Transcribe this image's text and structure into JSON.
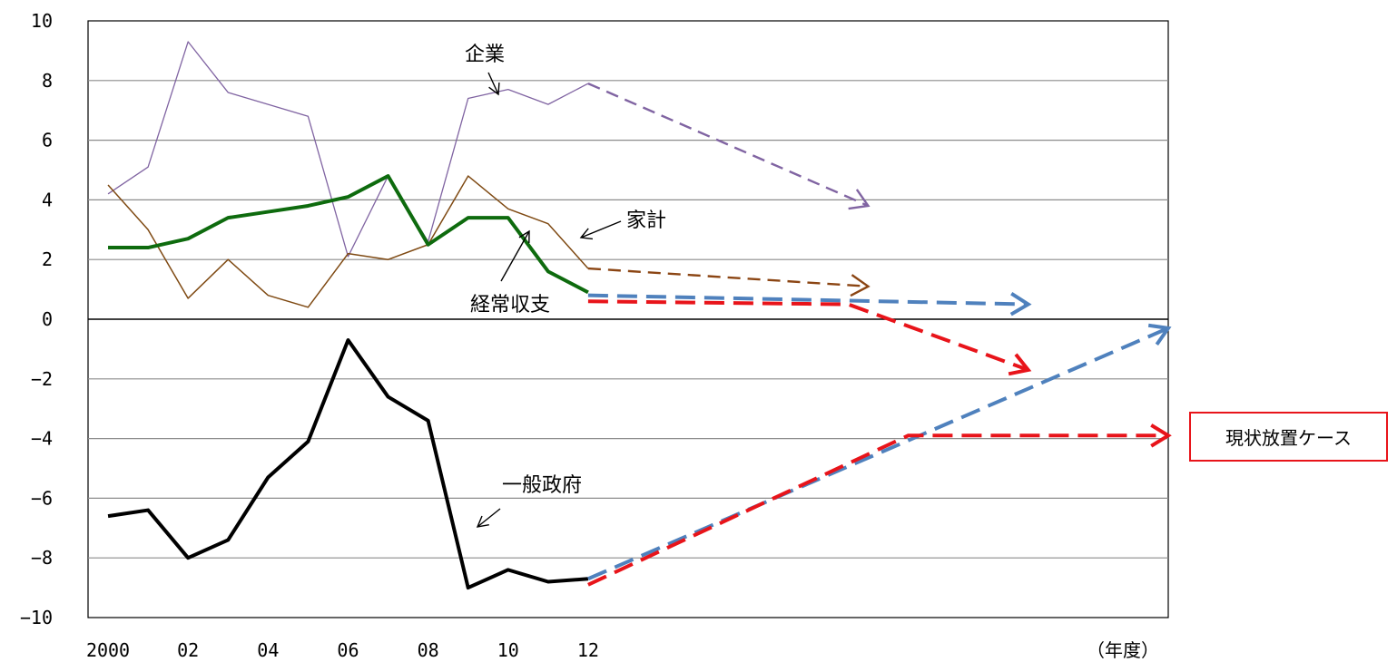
{
  "chart_data": {
    "type": "line",
    "x_unit": "（年度）",
    "ylim": [
      -10,
      10
    ],
    "y_ticks": [
      "10",
      "8",
      "6",
      "4",
      "2",
      "0",
      "-2",
      "-4",
      "-6",
      "-8",
      "-10"
    ],
    "x_tick_labels": [
      "2000",
      "02",
      "04",
      "06",
      "08",
      "10",
      "12"
    ],
    "x_years": [
      2000,
      2001,
      2002,
      2003,
      2004,
      2005,
      2006,
      2007,
      2008,
      2009,
      2010,
      2011,
      2012
    ],
    "series": [
      {
        "name": "企業",
        "color": "#8064a2",
        "values": [
          4.2,
          5.1,
          9.3,
          7.6,
          7.2,
          6.8,
          2.1,
          4.8,
          2.6,
          7.4,
          7.7,
          7.2,
          7.9
        ]
      },
      {
        "name": "家計",
        "color": "#7f4a13",
        "values": [
          4.5,
          3.0,
          0.7,
          2.0,
          0.8,
          0.4,
          2.2,
          2.0,
          2.5,
          4.8,
          3.7,
          3.2,
          1.7
        ]
      },
      {
        "name": "経常収支",
        "color": "#0e6b0e",
        "values": [
          2.4,
          2.4,
          2.7,
          3.4,
          3.6,
          3.8,
          4.1,
          4.8,
          2.5,
          3.4,
          3.4,
          1.6,
          0.9
        ]
      },
      {
        "name": "一般政府",
        "color": "#000000",
        "values": [
          -6.6,
          -6.4,
          -8.0,
          -7.4,
          -5.3,
          -4.1,
          -0.7,
          -2.6,
          -3.4,
          -9.0,
          -8.4,
          -8.8,
          -8.7
        ]
      }
    ],
    "projections": [
      {
        "series": "企業",
        "color": "#8064a2",
        "points": [
          [
            2012,
            7.9
          ],
          [
            2019,
            3.8
          ]
        ]
      },
      {
        "series": "家計",
        "color": "#8b4513",
        "points": [
          [
            2012,
            1.7
          ],
          [
            2019,
            1.1
          ]
        ]
      },
      {
        "series": "経常収支",
        "color": "#4f81bd",
        "points": [
          [
            2012,
            0.8
          ],
          [
            2023,
            0.5
          ]
        ]
      },
      {
        "series": "経常収支（現状放置ケース）",
        "color": "#e8141a",
        "points": [
          [
            2012,
            0.6
          ],
          [
            2018.5,
            0.5
          ],
          [
            2023,
            -1.7
          ]
        ]
      },
      {
        "series": "一般政府",
        "color": "#4f81bd",
        "points": [
          [
            2012,
            -8.7
          ],
          [
            2026.5,
            -0.3
          ]
        ]
      },
      {
        "series": "一般政府（現状放置ケース）",
        "color": "#e8141a",
        "points": [
          [
            2012,
            -8.9
          ],
          [
            2020,
            -3.9
          ],
          [
            2026.5,
            -3.9
          ]
        ]
      }
    ],
    "annotations": [
      {
        "text": "企業"
      },
      {
        "text": "家計"
      },
      {
        "text": "経常収支"
      },
      {
        "text": "一般政府"
      }
    ],
    "case_label": "現状放置ケース"
  }
}
